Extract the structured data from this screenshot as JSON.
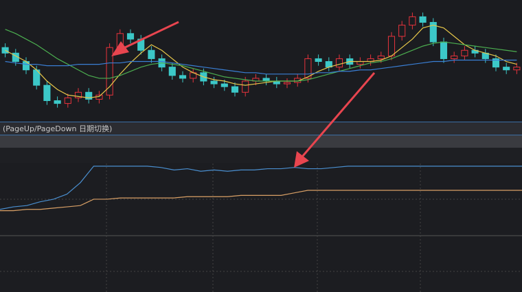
{
  "hint": "(PageUp/PageDown 日期切换)",
  "chart_data": [
    {
      "type": "candlestick",
      "ylim": [
        0,
        85
      ],
      "up_color": "#e8333c",
      "down_color": "#3cc8c8",
      "open": [
        52,
        48,
        42,
        36,
        25,
        14,
        12,
        16,
        20,
        15,
        18,
        52,
        62,
        58,
        50,
        44,
        38,
        32,
        30,
        34,
        28,
        26,
        24,
        20,
        28,
        30,
        28,
        26,
        27,
        30,
        44,
        42,
        38,
        44,
        40,
        42,
        44,
        46,
        60,
        68,
        74,
        70,
        56,
        44,
        46,
        50,
        48,
        44,
        38,
        36
      ],
      "high": [
        55,
        51,
        45,
        39,
        28,
        17,
        19,
        23,
        23,
        21,
        55,
        65,
        65,
        61,
        53,
        47,
        41,
        35,
        37,
        37,
        31,
        29,
        27,
        31,
        33,
        33,
        31,
        30,
        33,
        47,
        47,
        45,
        47,
        47,
        45,
        47,
        49,
        63,
        71,
        77,
        77,
        73,
        59,
        49,
        53,
        53,
        51,
        47,
        41,
        41
      ],
      "low": [
        45,
        39,
        33,
        22,
        11,
        9,
        9,
        13,
        12,
        12,
        15,
        49,
        55,
        47,
        41,
        35,
        29,
        27,
        27,
        25,
        23,
        21,
        17,
        17,
        25,
        25,
        23,
        23,
        24,
        27,
        39,
        35,
        35,
        37,
        37,
        39,
        41,
        43,
        57,
        65,
        67,
        53,
        41,
        41,
        43,
        45,
        41,
        35,
        33,
        33
      ],
      "close": [
        48,
        42,
        36,
        25,
        14,
        12,
        16,
        20,
        15,
        18,
        52,
        62,
        58,
        50,
        44,
        38,
        32,
        30,
        34,
        28,
        26,
        24,
        20,
        28,
        30,
        28,
        26,
        27,
        30,
        44,
        42,
        38,
        44,
        40,
        42,
        44,
        46,
        60,
        68,
        74,
        70,
        56,
        44,
        46,
        50,
        48,
        44,
        38,
        36,
        38
      ],
      "series": [
        {
          "color": "#e8c84a",
          "values": [
            50,
            46,
            42,
            36,
            28,
            22,
            18,
            17,
            16,
            17,
            24,
            33,
            41,
            48,
            54,
            50,
            44,
            38,
            34,
            31,
            29,
            28,
            26,
            25,
            26,
            27,
            28,
            28,
            28,
            31,
            35,
            38,
            40,
            42,
            42,
            42,
            43,
            46,
            52,
            58,
            66,
            68,
            66,
            60,
            54,
            50,
            48,
            46,
            42,
            40
          ]
        },
        {
          "color": "#4caf50",
          "values": [
            65,
            62,
            58,
            54,
            49,
            44,
            40,
            36,
            32,
            30,
            30,
            32,
            35,
            38,
            40,
            41,
            40,
            39,
            37,
            35,
            33,
            31,
            30,
            29,
            28,
            28,
            28,
            28,
            28,
            29,
            31,
            33,
            35,
            37,
            39,
            41,
            42,
            44,
            47,
            50,
            53,
            55,
            56,
            55,
            54,
            53,
            52,
            51,
            50,
            49
          ]
        },
        {
          "color": "#3a7fd5",
          "values": [
            42,
            41,
            40,
            40,
            39,
            39,
            39,
            40,
            40,
            40,
            41,
            41,
            42,
            42,
            42,
            42,
            41,
            40,
            39,
            38,
            37,
            36,
            35,
            34,
            34,
            33,
            33,
            33,
            33,
            33,
            34,
            34,
            35,
            35,
            36,
            36,
            37,
            38,
            39,
            40,
            41,
            42,
            42,
            43,
            43,
            43,
            43,
            43,
            43,
            43
          ]
        }
      ]
    },
    {
      "type": "line",
      "ylim": [
        0,
        100
      ],
      "series": [
        {
          "color": "#4a8fd0",
          "values": [
            65,
            67,
            68,
            71,
            73,
            77,
            86,
            99,
            99,
            99,
            99,
            99,
            98,
            96,
            97,
            95,
            96,
            95,
            96,
            96,
            97,
            97,
            98,
            97,
            97,
            98,
            99,
            99,
            99,
            99,
            99,
            99,
            99,
            99,
            99,
            99,
            99,
            99,
            99,
            99
          ]
        },
        {
          "color": "#d9a066",
          "values": [
            64,
            64,
            65,
            65,
            66,
            67,
            68,
            73,
            73,
            74,
            74,
            74,
            74,
            74,
            75,
            75,
            75,
            75,
            76,
            76,
            76,
            76,
            78,
            80,
            80,
            80,
            80,
            80,
            80,
            80,
            80,
            80,
            80,
            80,
            80,
            80,
            80,
            80,
            80,
            80
          ]
        }
      ]
    }
  ]
}
